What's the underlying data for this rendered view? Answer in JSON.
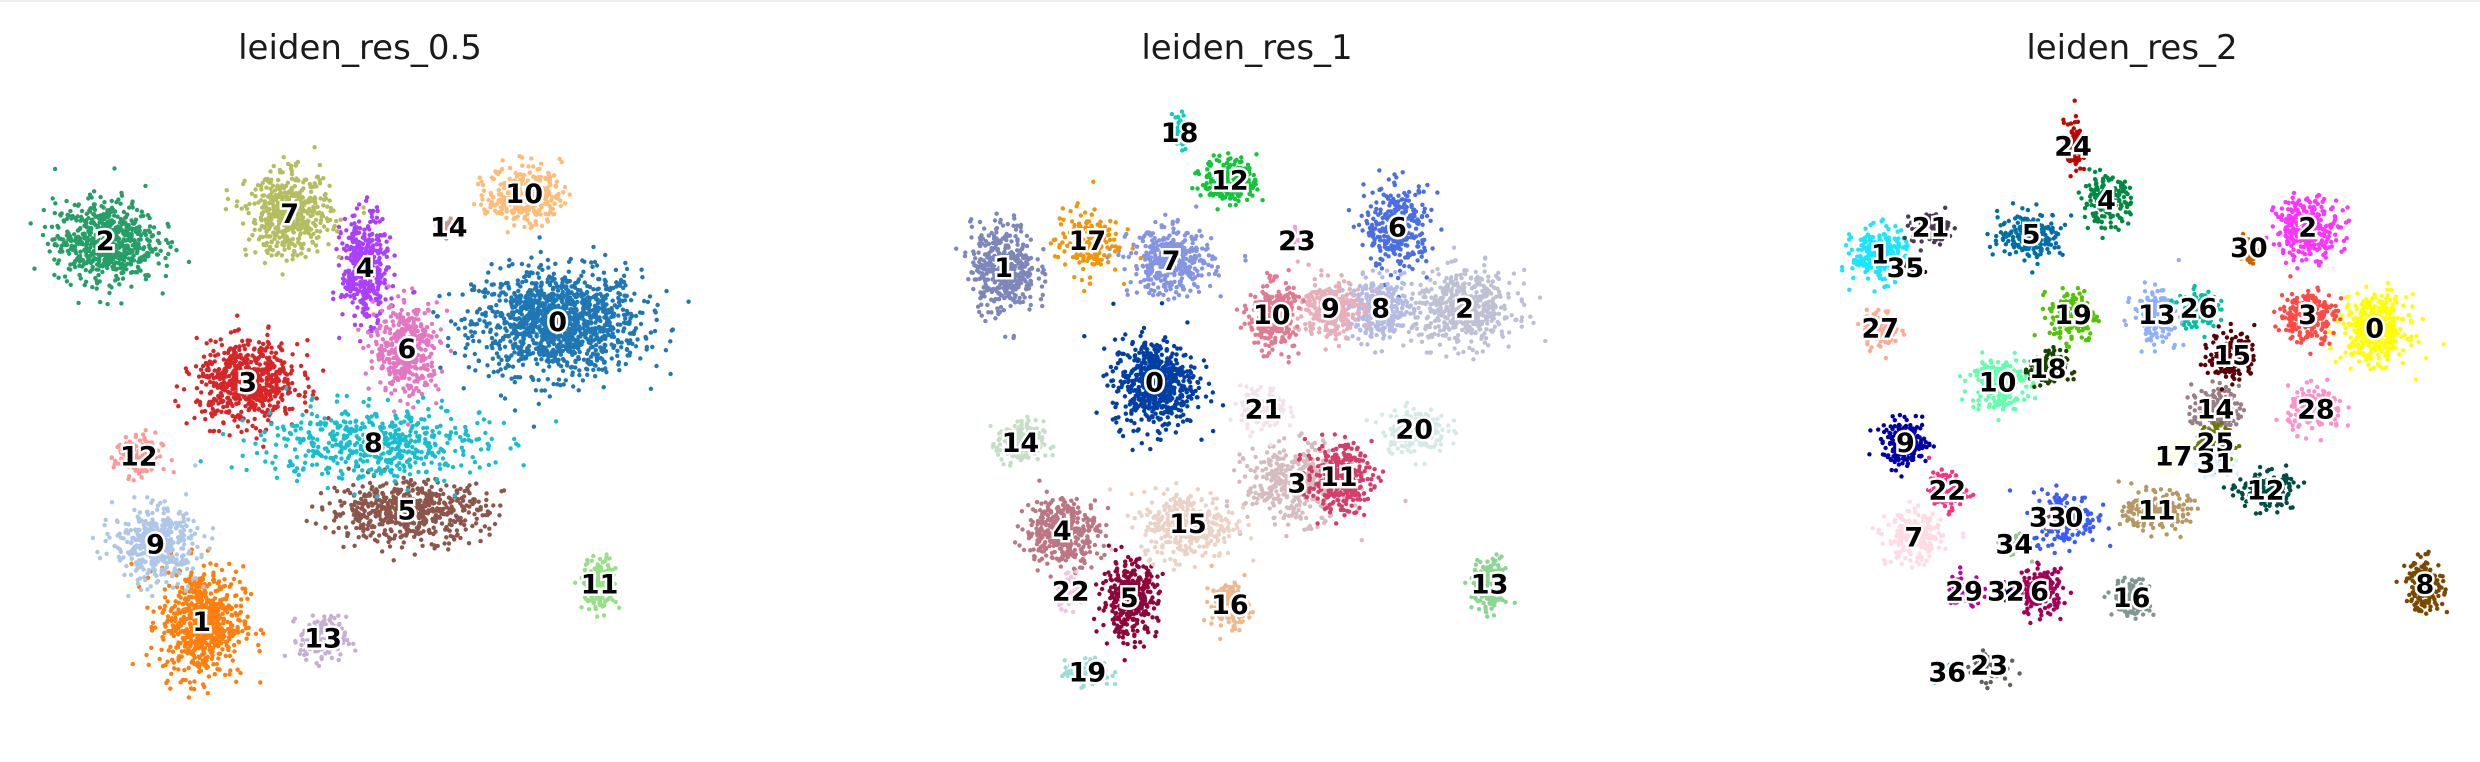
{
  "chart_data": [
    {
      "type": "scatter",
      "title": "leiden_res_0.5",
      "xlabel": "",
      "ylabel": "",
      "grid": false,
      "legend": "on data",
      "clusters": [
        {
          "name": "0",
          "color": "#1f77b4",
          "x": 6.0,
          "y": 5.9,
          "sx": 0.9,
          "sy": 0.7,
          "n": 1300
        },
        {
          "name": "1",
          "color": "#ff7f0e",
          "x": 1.75,
          "y": 1.45,
          "sx": 0.45,
          "sy": 0.75,
          "n": 650
        },
        {
          "name": "2",
          "color": "#279e68",
          "x": 0.6,
          "y": 7.1,
          "sx": 0.55,
          "sy": 0.55,
          "n": 650
        },
        {
          "name": "3",
          "color": "#d62728",
          "x": 2.3,
          "y": 5.0,
          "sx": 0.55,
          "sy": 0.55,
          "n": 650
        },
        {
          "name": "4",
          "color": "#aa40fc",
          "x": 3.7,
          "y": 6.7,
          "sx": 0.25,
          "sy": 0.7,
          "n": 420
        },
        {
          "name": "5",
          "color": "#8c564b",
          "x": 4.2,
          "y": 3.1,
          "sx": 0.85,
          "sy": 0.4,
          "n": 600
        },
        {
          "name": "6",
          "color": "#e377c2",
          "x": 4.2,
          "y": 5.5,
          "sx": 0.35,
          "sy": 0.6,
          "n": 420
        },
        {
          "name": "7",
          "color": "#b5bd61",
          "x": 2.8,
          "y": 7.5,
          "sx": 0.45,
          "sy": 0.55,
          "n": 500
        },
        {
          "name": "8",
          "color": "#17becf",
          "x": 3.8,
          "y": 4.1,
          "sx": 1.2,
          "sy": 0.5,
          "n": 520
        },
        {
          "name": "9",
          "color": "#aec7e8",
          "x": 1.2,
          "y": 2.6,
          "sx": 0.45,
          "sy": 0.5,
          "n": 420
        },
        {
          "name": "10",
          "color": "#ffbb78",
          "x": 5.6,
          "y": 7.8,
          "sx": 0.4,
          "sy": 0.4,
          "n": 300
        },
        {
          "name": "11",
          "color": "#98df8a",
          "x": 6.5,
          "y": 2.0,
          "sx": 0.18,
          "sy": 0.35,
          "n": 170
        },
        {
          "name": "12",
          "color": "#ff9896",
          "x": 1.0,
          "y": 3.9,
          "sx": 0.25,
          "sy": 0.3,
          "n": 150
        },
        {
          "name": "13",
          "color": "#c5b0d5",
          "x": 3.2,
          "y": 1.2,
          "sx": 0.25,
          "sy": 0.3,
          "n": 150
        },
        {
          "name": "14",
          "color": "#c49c94",
          "x": 4.7,
          "y": 7.3,
          "sx": 0.1,
          "sy": 0.12,
          "n": 40
        }
      ]
    },
    {
      "type": "scatter",
      "title": "leiden_res_1",
      "xlabel": "",
      "ylabel": "",
      "grid": false,
      "legend": "on data",
      "clusters": [
        {
          "name": "0",
          "color": "#023fa5",
          "x": 2.5,
          "y": 5.0,
          "sx": 0.45,
          "sy": 0.6,
          "n": 600
        },
        {
          "name": "1",
          "color": "#7d87b9",
          "x": 0.7,
          "y": 6.7,
          "sx": 0.35,
          "sy": 0.6,
          "n": 420
        },
        {
          "name": "2",
          "color": "#bec1d4",
          "x": 6.2,
          "y": 6.1,
          "sx": 0.55,
          "sy": 0.5,
          "n": 500
        },
        {
          "name": "3",
          "color": "#d6bcc0",
          "x": 4.2,
          "y": 3.5,
          "sx": 0.55,
          "sy": 0.5,
          "n": 420
        },
        {
          "name": "4",
          "color": "#bb7784",
          "x": 1.4,
          "y": 2.8,
          "sx": 0.4,
          "sy": 0.45,
          "n": 380
        },
        {
          "name": "5",
          "color": "#8e063b",
          "x": 2.2,
          "y": 1.8,
          "sx": 0.3,
          "sy": 0.5,
          "n": 360
        },
        {
          "name": "6",
          "color": "#4a6fe3",
          "x": 5.4,
          "y": 7.3,
          "sx": 0.35,
          "sy": 0.55,
          "n": 320
        },
        {
          "name": "7",
          "color": "#8595e1",
          "x": 2.7,
          "y": 6.8,
          "sx": 0.45,
          "sy": 0.45,
          "n": 380
        },
        {
          "name": "8",
          "color": "#b5bbe3",
          "x": 5.2,
          "y": 6.1,
          "sx": 0.35,
          "sy": 0.4,
          "n": 300
        },
        {
          "name": "9",
          "color": "#e6afb9",
          "x": 4.6,
          "y": 6.1,
          "sx": 0.3,
          "sy": 0.4,
          "n": 280
        },
        {
          "name": "10",
          "color": "#e07b91",
          "x": 3.9,
          "y": 6.0,
          "sx": 0.25,
          "sy": 0.45,
          "n": 280
        },
        {
          "name": "11",
          "color": "#d33f6a",
          "x": 4.7,
          "y": 3.6,
          "sx": 0.35,
          "sy": 0.45,
          "n": 320
        },
        {
          "name": "12",
          "color": "#11c638",
          "x": 3.4,
          "y": 8.0,
          "sx": 0.3,
          "sy": 0.3,
          "n": 220
        },
        {
          "name": "13",
          "color": "#8dd593",
          "x": 6.5,
          "y": 2.0,
          "sx": 0.18,
          "sy": 0.35,
          "n": 170
        },
        {
          "name": "14",
          "color": "#c6dec7",
          "x": 0.9,
          "y": 4.1,
          "sx": 0.25,
          "sy": 0.3,
          "n": 180
        },
        {
          "name": "15",
          "color": "#ead3c6",
          "x": 2.9,
          "y": 2.9,
          "sx": 0.5,
          "sy": 0.45,
          "n": 360
        },
        {
          "name": "16",
          "color": "#f0b98d",
          "x": 3.4,
          "y": 1.7,
          "sx": 0.2,
          "sy": 0.3,
          "n": 150
        },
        {
          "name": "17",
          "color": "#ef9708",
          "x": 1.7,
          "y": 7.1,
          "sx": 0.35,
          "sy": 0.45,
          "n": 170
        },
        {
          "name": "18",
          "color": "#0fcfc0",
          "x": 2.8,
          "y": 8.7,
          "sx": 0.08,
          "sy": 0.25,
          "n": 60
        },
        {
          "name": "19",
          "color": "#9cded6",
          "x": 1.7,
          "y": 0.7,
          "sx": 0.25,
          "sy": 0.18,
          "n": 100
        },
        {
          "name": "20",
          "color": "#d5eae7",
          "x": 5.6,
          "y": 4.3,
          "sx": 0.35,
          "sy": 0.3,
          "n": 180
        },
        {
          "name": "21",
          "color": "#f3e1eb",
          "x": 3.8,
          "y": 4.6,
          "sx": 0.25,
          "sy": 0.3,
          "n": 140
        },
        {
          "name": "22",
          "color": "#f6c4e1",
          "x": 1.5,
          "y": 1.9,
          "sx": 0.15,
          "sy": 0.2,
          "n": 90
        },
        {
          "name": "23",
          "color": "#f79cd4",
          "x": 4.2,
          "y": 7.1,
          "sx": 0.1,
          "sy": 0.12,
          "n": 40
        }
      ]
    },
    {
      "type": "scatter",
      "title": "leiden_res_2",
      "xlabel": "",
      "ylabel": "",
      "grid": false,
      "legend": "on data",
      "clusters": [
        {
          "name": "0",
          "color": "#ffff00",
          "x": 6.5,
          "y": 5.8,
          "sx": 0.35,
          "sy": 0.45,
          "n": 400
        },
        {
          "name": "1",
          "color": "#1ce6ff",
          "x": 0.6,
          "y": 6.9,
          "sx": 0.3,
          "sy": 0.35,
          "n": 260
        },
        {
          "name": "2",
          "color": "#ff34ff",
          "x": 5.7,
          "y": 7.3,
          "sx": 0.35,
          "sy": 0.4,
          "n": 300
        },
        {
          "name": "3",
          "color": "#ff4a46",
          "x": 5.7,
          "y": 6.0,
          "sx": 0.3,
          "sy": 0.35,
          "n": 240
        },
        {
          "name": "4",
          "color": "#008941",
          "x": 3.3,
          "y": 7.7,
          "sx": 0.25,
          "sy": 0.3,
          "n": 200
        },
        {
          "name": "5",
          "color": "#006fa6",
          "x": 2.4,
          "y": 7.2,
          "sx": 0.35,
          "sy": 0.3,
          "n": 220
        },
        {
          "name": "6",
          "color": "#a30059",
          "x": 2.5,
          "y": 1.9,
          "sx": 0.25,
          "sy": 0.3,
          "n": 200
        },
        {
          "name": "7",
          "color": "#ffdbe5",
          "x": 1.0,
          "y": 2.7,
          "sx": 0.3,
          "sy": 0.35,
          "n": 220
        },
        {
          "name": "8",
          "color": "#7a4900",
          "x": 7.1,
          "y": 2.0,
          "sx": 0.2,
          "sy": 0.35,
          "n": 170
        },
        {
          "name": "9",
          "color": "#0000a6",
          "x": 0.9,
          "y": 4.1,
          "sx": 0.25,
          "sy": 0.3,
          "n": 200
        },
        {
          "name": "10",
          "color": "#63ffac",
          "x": 2.0,
          "y": 5.0,
          "sx": 0.3,
          "sy": 0.35,
          "n": 220
        },
        {
          "name": "11",
          "color": "#b79762",
          "x": 3.9,
          "y": 3.1,
          "sx": 0.35,
          "sy": 0.25,
          "n": 200
        },
        {
          "name": "12",
          "color": "#004d43",
          "x": 5.2,
          "y": 3.4,
          "sx": 0.3,
          "sy": 0.25,
          "n": 180
        },
        {
          "name": "13",
          "color": "#8fb0ff",
          "x": 3.9,
          "y": 6.0,
          "sx": 0.25,
          "sy": 0.35,
          "n": 180
        },
        {
          "name": "14",
          "color": "#997d87",
          "x": 4.6,
          "y": 4.6,
          "sx": 0.25,
          "sy": 0.3,
          "n": 160
        },
        {
          "name": "15",
          "color": "#5a0007",
          "x": 4.8,
          "y": 5.4,
          "sx": 0.25,
          "sy": 0.35,
          "n": 160
        },
        {
          "name": "16",
          "color": "#809693",
          "x": 3.6,
          "y": 1.8,
          "sx": 0.2,
          "sy": 0.25,
          "n": 140
        },
        {
          "name": "17",
          "color": "#feffe6",
          "x": 4.1,
          "y": 3.9,
          "sx": 0.2,
          "sy": 0.2,
          "n": 120
        },
        {
          "name": "18",
          "color": "#1b4400",
          "x": 2.6,
          "y": 5.2,
          "sx": 0.2,
          "sy": 0.25,
          "n": 140
        },
        {
          "name": "19",
          "color": "#4fc601",
          "x": 2.9,
          "y": 6.0,
          "sx": 0.25,
          "sy": 0.35,
          "n": 180
        },
        {
          "name": "20",
          "color": "#3b5dff",
          "x": 2.8,
          "y": 3.0,
          "sx": 0.35,
          "sy": 0.35,
          "n": 200
        },
        {
          "name": "21",
          "color": "#4a3b53",
          "x": 1.2,
          "y": 7.3,
          "sx": 0.2,
          "sy": 0.2,
          "n": 100
        },
        {
          "name": "22",
          "color": "#ff2f80",
          "x": 1.4,
          "y": 3.4,
          "sx": 0.2,
          "sy": 0.25,
          "n": 130
        },
        {
          "name": "23",
          "color": "#61615a",
          "x": 1.9,
          "y": 0.8,
          "sx": 0.2,
          "sy": 0.2,
          "n": 90
        },
        {
          "name": "24",
          "color": "#ba0900",
          "x": 2.9,
          "y": 8.5,
          "sx": 0.1,
          "sy": 0.35,
          "n": 90
        },
        {
          "name": "25",
          "color": "#6b7900",
          "x": 4.6,
          "y": 4.1,
          "sx": 0.2,
          "sy": 0.25,
          "n": 120
        },
        {
          "name": "26",
          "color": "#00c2a0",
          "x": 4.4,
          "y": 6.1,
          "sx": 0.2,
          "sy": 0.25,
          "n": 120
        },
        {
          "name": "27",
          "color": "#ffaa92",
          "x": 0.6,
          "y": 5.8,
          "sx": 0.2,
          "sy": 0.25,
          "n": 110
        },
        {
          "name": "28",
          "color": "#ff90c9",
          "x": 5.8,
          "y": 4.6,
          "sx": 0.3,
          "sy": 0.3,
          "n": 150
        },
        {
          "name": "29",
          "color": "#b903aa",
          "x": 1.6,
          "y": 1.9,
          "sx": 0.2,
          "sy": 0.2,
          "n": 100
        },
        {
          "name": "30",
          "color": "#d16100",
          "x": 5.0,
          "y": 7.0,
          "sx": 0.12,
          "sy": 0.18,
          "n": 60
        },
        {
          "name": "31",
          "color": "#ddefff",
          "x": 4.6,
          "y": 3.8,
          "sx": 0.15,
          "sy": 0.15,
          "n": 80
        },
        {
          "name": "32",
          "color": "#000035",
          "x": 2.1,
          "y": 1.9,
          "sx": 0.1,
          "sy": 0.1,
          "n": 40
        },
        {
          "name": "33",
          "color": "#7b4f4b",
          "x": 2.6,
          "y": 3.0,
          "sx": 0.12,
          "sy": 0.12,
          "n": 50
        },
        {
          "name": "34",
          "color": "#a1c299",
          "x": 2.2,
          "y": 2.6,
          "sx": 0.15,
          "sy": 0.15,
          "n": 60
        },
        {
          "name": "35",
          "color": "#300018",
          "x": 0.9,
          "y": 6.7,
          "sx": 0.1,
          "sy": 0.1,
          "n": 40
        },
        {
          "name": "36",
          "color": "#0aa6d8",
          "x": 1.4,
          "y": 0.7,
          "sx": 0.12,
          "sy": 0.1,
          "n": 40
        }
      ]
    }
  ]
}
